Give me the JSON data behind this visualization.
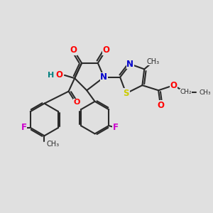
{
  "background_color": "#e0e0e0",
  "bond_color": "#2a2a2a",
  "bond_width": 1.5,
  "atom_colors": {
    "O": "#ff0000",
    "N": "#0000cc",
    "S": "#cccc00",
    "F": "#cc00cc",
    "H": "#008080",
    "C": "#2a2a2a"
  },
  "figsize": [
    3.0,
    3.0
  ],
  "dpi": 100,
  "xlim": [
    0,
    10
  ],
  "ylim": [
    0,
    10
  ]
}
